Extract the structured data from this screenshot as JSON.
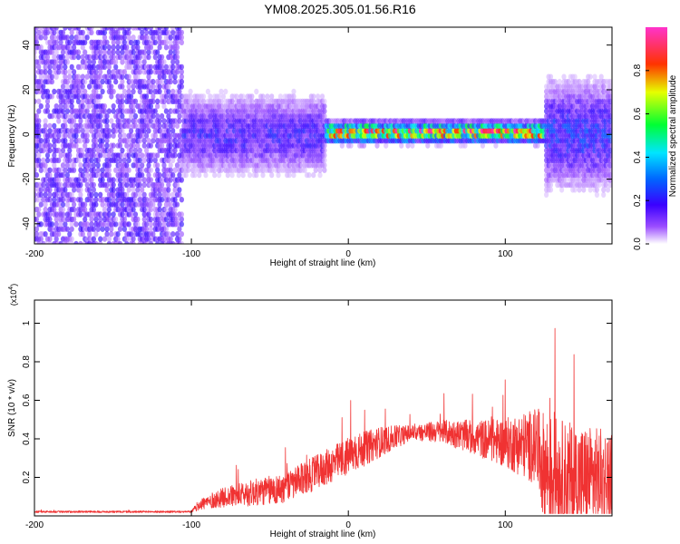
{
  "title": "YM08.2025.305.01.56.R16",
  "chart_data": [
    {
      "type": "heatmap",
      "id": "spectrogram",
      "xlabel": "Height of straight line (km)",
      "ylabel": "Frequency (Hz)",
      "xlim": [
        -200,
        168
      ],
      "ylim": [
        -49,
        48
      ],
      "x_ticks": [
        "-200",
        "-100",
        "0",
        "100"
      ],
      "x_tick_values": [
        -200,
        -100,
        0,
        100
      ],
      "y_ticks": [
        "-40",
        "-20",
        "0",
        "20",
        "40"
      ],
      "y_tick_values": [
        -40,
        -20,
        0,
        20,
        40
      ],
      "colorbar": {
        "label": "Normalized spectral amplitude",
        "range": [
          0,
          1
        ],
        "ticks": [
          "0.0",
          "0.2",
          "0.4",
          "0.6",
          "0.8"
        ],
        "tick_values": [
          0.0,
          0.2,
          0.4,
          0.6,
          0.8
        ],
        "colormap": [
          "#ffffff",
          "#7a00ff",
          "#0000ff",
          "#00ffff",
          "#00ff00",
          "#ffff00",
          "#ff0000",
          "#ff00ff"
        ]
      },
      "regions": [
        {
          "x": [
            -200,
            -105
          ],
          "freq_center": 0,
          "freq_halfwidth": 48,
          "amplitude": 0.12,
          "description": "noise"
        },
        {
          "x": [
            -105,
            -15
          ],
          "freq_center": 0,
          "freq_halfwidth": 15,
          "amplitude": 0.2
        },
        {
          "x": [
            -15,
            125
          ],
          "freq_center": 1,
          "freq_halfwidth": 4,
          "amplitude": 0.85
        },
        {
          "x": [
            125,
            168
          ],
          "freq_center": 0,
          "freq_halfwidth": 20,
          "amplitude": 0.25
        }
      ]
    },
    {
      "type": "line",
      "id": "snr",
      "xlabel": "Height of straight line (km)",
      "ylabel": "SNR (10 * v/v)",
      "y_multiplier": "(x10",
      "y_multiplier_exp": "4",
      "xlim": [
        -200,
        168
      ],
      "ylim": [
        0,
        1.12
      ],
      "x_ticks": [
        "-200",
        "-100",
        "0",
        "100"
      ],
      "x_tick_values": [
        -200,
        -100,
        0,
        100
      ],
      "y_ticks": [
        "0.2",
        "0.4",
        "0.6",
        "0.8",
        "1"
      ],
      "y_tick_values": [
        0.2,
        0.4,
        0.6,
        0.8,
        1.0
      ],
      "color": "#f03232",
      "envelope": {
        "x": [
          -200,
          -100,
          -95,
          -80,
          -60,
          -40,
          -20,
          0,
          20,
          40,
          60,
          80,
          100,
          120,
          125,
          140,
          168
        ],
        "base": [
          0.02,
          0.02,
          0.05,
          0.08,
          0.1,
          0.12,
          0.2,
          0.28,
          0.36,
          0.42,
          0.42,
          0.38,
          0.34,
          0.3,
          0.15,
          0.1,
          0.12
        ],
        "spread": [
          0.01,
          0.01,
          0.06,
          0.1,
          0.14,
          0.16,
          0.18,
          0.2,
          0.16,
          0.08,
          0.12,
          0.18,
          0.26,
          0.4,
          0.6,
          0.6,
          0.5
        ]
      }
    }
  ]
}
